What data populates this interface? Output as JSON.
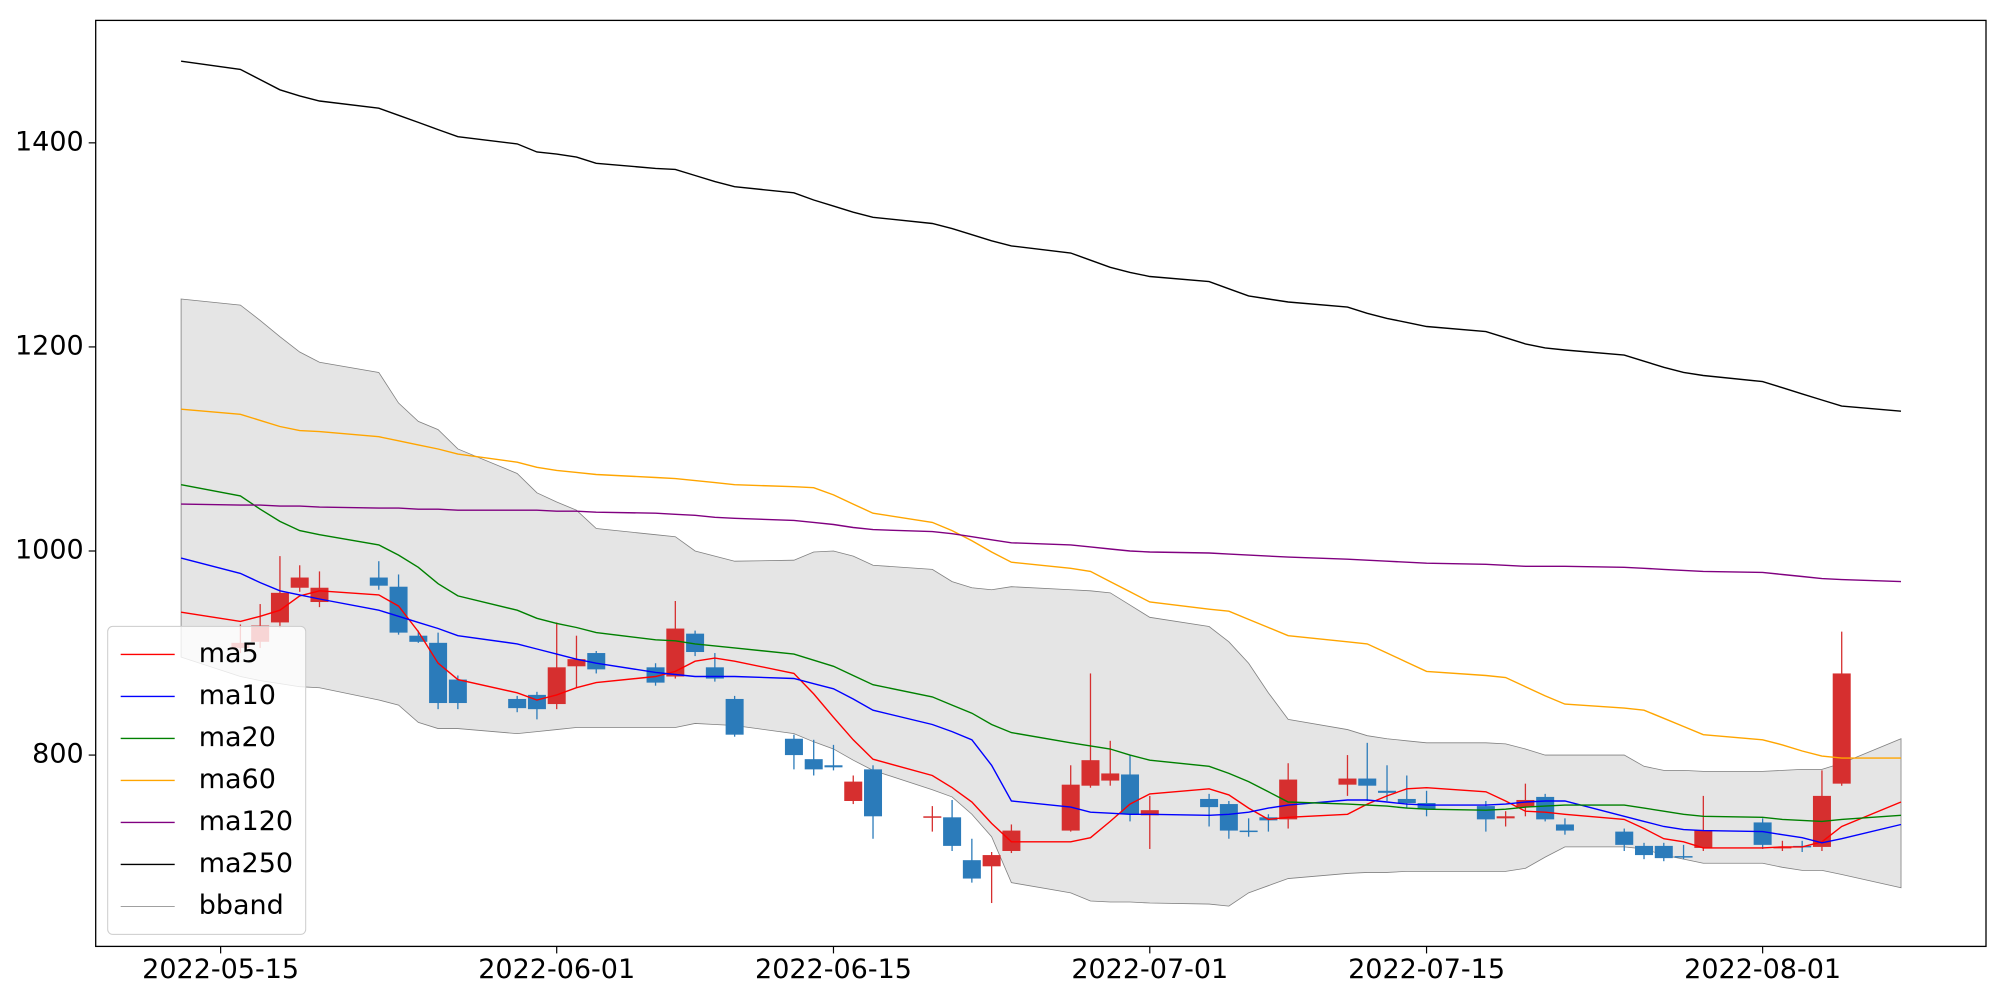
{
  "chart_data": {
    "type": "candlestick",
    "xlim": [
      "2022-05-08T16:20",
      "2022-08-12T07:10"
    ],
    "ylim": [
      612.5,
      1520
    ],
    "xticks": [
      "2022-05-15",
      "2022-06-01",
      "2022-06-15",
      "2022-07-01",
      "2022-07-15",
      "2022-08-01"
    ],
    "yticks": [
      800,
      1000,
      1200,
      1400
    ],
    "legend": "lower left",
    "x": [
      "2022-05-13",
      "2022-05-16",
      "2022-05-17",
      "2022-05-18",
      "2022-05-19",
      "2022-05-20",
      "2022-05-23",
      "2022-05-24",
      "2022-05-25",
      "2022-05-26",
      "2022-05-27",
      "2022-05-30",
      "2022-05-31",
      "2022-06-01",
      "2022-06-02",
      "2022-06-03",
      "2022-06-06",
      "2022-06-07",
      "2022-06-08",
      "2022-06-09",
      "2022-06-10",
      "2022-06-13",
      "2022-06-14",
      "2022-06-15",
      "2022-06-16",
      "2022-06-17",
      "2022-06-20",
      "2022-06-21",
      "2022-06-22",
      "2022-06-23",
      "2022-06-24",
      "2022-06-27",
      "2022-06-28",
      "2022-06-29",
      "2022-06-30",
      "2022-07-01",
      "2022-07-04",
      "2022-07-05",
      "2022-07-06",
      "2022-07-07",
      "2022-07-08",
      "2022-07-11",
      "2022-07-12",
      "2022-07-13",
      "2022-07-14",
      "2022-07-15",
      "2022-07-18",
      "2022-07-19",
      "2022-07-20",
      "2022-07-21",
      "2022-07-22",
      "2022-07-25",
      "2022-07-26",
      "2022-07-27",
      "2022-07-28",
      "2022-07-29",
      "2022-08-01",
      "2022-08-02",
      "2022-08-03",
      "2022-08-04",
      "2022-08-05",
      "2022-08-08"
    ],
    "candles": {
      "up_color": "#d62f2f",
      "down_color": "#2b7bba",
      "x": [
        "2022-05-16",
        "2022-05-17",
        "2022-05-18",
        "2022-05-19",
        "2022-05-20",
        "2022-05-23",
        "2022-05-24",
        "2022-05-25",
        "2022-05-26",
        "2022-05-27",
        "2022-05-30",
        "2022-05-31",
        "2022-06-01",
        "2022-06-02",
        "2022-06-03",
        "2022-06-06",
        "2022-06-07",
        "2022-06-08",
        "2022-06-09",
        "2022-06-10",
        "2022-06-13",
        "2022-06-14",
        "2022-06-15",
        "2022-06-16",
        "2022-06-17",
        "2022-06-20",
        "2022-06-21",
        "2022-06-22",
        "2022-06-23",
        "2022-06-24",
        "2022-06-27",
        "2022-06-28",
        "2022-06-29",
        "2022-06-30",
        "2022-07-01",
        "2022-07-04",
        "2022-07-05",
        "2022-07-06",
        "2022-07-07",
        "2022-07-08",
        "2022-07-11",
        "2022-07-12",
        "2022-07-13",
        "2022-07-14",
        "2022-07-15",
        "2022-07-18",
        "2022-07-19",
        "2022-07-20",
        "2022-07-21",
        "2022-07-22",
        "2022-07-25",
        "2022-07-26",
        "2022-07-27",
        "2022-07-28",
        "2022-07-29",
        "2022-08-01",
        "2022-08-02",
        "2022-08-03",
        "2022-08-04",
        "2022-08-05"
      ],
      "open": [
        905,
        911,
        930,
        964,
        950,
        974,
        965,
        917,
        910,
        874,
        855,
        859,
        850,
        887,
        900,
        886,
        877,
        919,
        886,
        855,
        816,
        796,
        790,
        755,
        786,
        739,
        739,
        697,
        691,
        706,
        726,
        770,
        775,
        781,
        741,
        757,
        752,
        726,
        739,
        737,
        771,
        777,
        765,
        757,
        753,
        750,
        738,
        749,
        759,
        732,
        725,
        711,
        711,
        701,
        709,
        734,
        709,
        711,
        710,
        772
      ],
      "high": [
        928,
        948,
        995,
        986,
        980,
        990,
        977,
        922,
        920,
        878,
        858,
        862,
        930,
        917,
        902,
        890,
        951,
        922,
        900,
        858,
        820,
        815,
        810,
        780,
        790,
        750,
        756,
        718,
        705,
        732,
        790,
        880,
        814,
        800,
        760,
        762,
        755,
        738,
        742,
        792,
        800,
        812,
        790,
        780,
        765,
        755,
        745,
        772,
        762,
        738,
        728,
        714,
        714,
        712,
        760,
        738,
        716,
        716,
        785,
        921
      ],
      "low": [
        900,
        905,
        925,
        960,
        945,
        962,
        918,
        910,
        845,
        845,
        842,
        835,
        845,
        866,
        880,
        868,
        875,
        897,
        872,
        818,
        786,
        780,
        785,
        752,
        718,
        725,
        706,
        675,
        655,
        704,
        725,
        768,
        770,
        735,
        708,
        730,
        718,
        720,
        725,
        728,
        760,
        755,
        755,
        748,
        740,
        725,
        730,
        740,
        735,
        722,
        706,
        698,
        696,
        698,
        706,
        708,
        706,
        705,
        706,
        770
      ],
      "close": [
        910,
        927,
        959,
        974,
        964,
        966,
        920,
        911,
        851,
        851,
        846,
        845,
        886,
        894,
        884,
        871,
        924,
        901,
        875,
        820,
        800,
        786,
        788,
        774,
        740,
        740,
        711,
        679,
        702,
        726,
        771,
        795,
        782,
        742,
        746,
        749,
        726,
        725,
        736,
        776,
        777,
        770,
        763,
        753,
        747,
        737,
        740,
        756,
        737,
        726,
        712,
        702,
        699,
        700,
        726,
        712,
        710,
        710,
        760,
        880
      ]
    },
    "series": [
      {
        "name": "ma5",
        "color": "#ff0000",
        "values": [
          940,
          931,
          936,
          942,
          956,
          961,
          957,
          946,
          921,
          890,
          874,
          861,
          854,
          859,
          866,
          871,
          877,
          882,
          892,
          895,
          892,
          880,
          860,
          837,
          815,
          796,
          780,
          768,
          754,
          733,
          715,
          715,
          719,
          735,
          752,
          762,
          767,
          761,
          748,
          737,
          739,
          742,
          752,
          760,
          767,
          768,
          764,
          755,
          745,
          744,
          742,
          737,
          728,
          718,
          715,
          709,
          709,
          710,
          710,
          715,
          730,
          754
        ]
      },
      {
        "name": "ma10",
        "color": "#0000ff",
        "values": [
          993,
          978,
          969,
          961,
          957,
          953,
          942,
          936,
          930,
          924,
          917,
          909,
          904,
          899,
          894,
          890,
          881,
          879,
          877,
          877,
          877,
          875,
          870,
          865,
          855,
          844,
          830,
          823,
          815,
          790,
          755,
          749,
          744,
          743,
          742,
          742,
          741,
          742,
          744,
          748,
          751,
          756,
          756,
          754,
          752,
          751,
          751,
          752,
          754,
          755,
          755,
          740,
          735,
          730,
          727,
          726,
          725,
          722,
          719,
          714,
          718,
          732
        ]
      },
      {
        "name": "ma20",
        "color": "#008000",
        "values": [
          1065,
          1054,
          1041,
          1029,
          1020,
          1016,
          1006,
          996,
          984,
          968,
          956,
          942,
          934,
          929,
          925,
          920,
          913,
          912,
          909,
          907,
          905,
          899,
          893,
          887,
          878,
          869,
          857,
          849,
          841,
          830,
          822,
          812,
          809,
          806,
          800,
          795,
          789,
          782,
          774,
          764,
          754,
          752,
          751,
          750,
          748,
          747,
          746,
          747,
          749,
          750,
          751,
          751,
          748,
          745,
          742,
          740,
          739,
          737,
          736,
          735,
          737,
          741
        ]
      },
      {
        "name": "ma60",
        "color": "#ffa500",
        "values": [
          1139,
          1134,
          1128,
          1122,
          1118,
          1117,
          1112,
          1108,
          1104,
          1100,
          1095,
          1087,
          1082,
          1079,
          1077,
          1075,
          1072,
          1071,
          1069,
          1067,
          1065,
          1063,
          1062,
          1055,
          1046,
          1037,
          1028,
          1020,
          1010,
          999,
          989,
          983,
          980,
          970,
          960,
          950,
          943,
          941,
          933,
          925,
          917,
          911,
          909,
          900,
          891,
          882,
          878,
          876,
          867,
          858,
          850,
          846,
          844,
          836,
          828,
          820,
          815,
          810,
          804,
          799,
          797,
          797
        ]
      },
      {
        "name": "ma120",
        "color": "#800080",
        "values": [
          1046,
          1045,
          1045,
          1044,
          1044,
          1043,
          1042,
          1042,
          1041,
          1041,
          1040,
          1040,
          1040,
          1039,
          1039,
          1038,
          1037,
          1036,
          1035,
          1033,
          1032,
          1030,
          1028,
          1026,
          1023,
          1021,
          1019,
          1017,
          1014,
          1011,
          1008,
          1006,
          1004,
          1002,
          1000,
          999,
          998,
          997,
          996,
          995,
          994,
          992,
          991,
          990,
          989,
          988,
          987,
          986,
          985,
          985,
          985,
          984,
          983,
          982,
          981,
          980,
          979,
          977,
          975,
          973,
          972,
          970
        ]
      },
      {
        "name": "ma250",
        "color": "#000000",
        "values": [
          1480,
          1472,
          1462,
          1452,
          1446,
          1441,
          1434,
          1427,
          1420,
          1413,
          1406,
          1399,
          1391,
          1389,
          1386,
          1380,
          1375,
          1374,
          1368,
          1362,
          1357,
          1351,
          1344,
          1338,
          1332,
          1327,
          1321,
          1316,
          1310,
          1304,
          1299,
          1292,
          1285,
          1278,
          1273,
          1269,
          1264,
          1257,
          1250,
          1247,
          1244,
          1239,
          1233,
          1228,
          1224,
          1220,
          1215,
          1209,
          1203,
          1199,
          1197,
          1192,
          1186,
          1180,
          1175,
          1172,
          1166,
          1160,
          1154,
          1148,
          1142,
          1137
        ]
      }
    ],
    "bband": {
      "name": "bband",
      "color": "#808080",
      "fill": "#e5e5e5",
      "upper": [
        1247,
        1241,
        1226,
        1210,
        1195,
        1185,
        1175,
        1145,
        1127,
        1119,
        1100,
        1076,
        1057,
        1048,
        1040,
        1022,
        1016,
        1014,
        1000,
        995,
        990,
        991,
        999,
        1000,
        995,
        986,
        982,
        970,
        964,
        962,
        965,
        962,
        961,
        959,
        947,
        935,
        926,
        911,
        890,
        861,
        835,
        825,
        819,
        816,
        814,
        812,
        812,
        811,
        806,
        800,
        800,
        800,
        789,
        785,
        785,
        784,
        784,
        785,
        786,
        786,
        792,
        816
      ],
      "lower": [
        896,
        877,
        873,
        870,
        867,
        866,
        854,
        849,
        832,
        826,
        826,
        821,
        823,
        825,
        827,
        827,
        827,
        827,
        831,
        830,
        829,
        821,
        813,
        806,
        795,
        785,
        766,
        759,
        742,
        720,
        675,
        665,
        657,
        656,
        656,
        655,
        654,
        652,
        665,
        672,
        679,
        684,
        685,
        685,
        686,
        686,
        686,
        686,
        689,
        700,
        710,
        710,
        708,
        702,
        698,
        694,
        694,
        690,
        687,
        687,
        683,
        670
      ]
    }
  }
}
